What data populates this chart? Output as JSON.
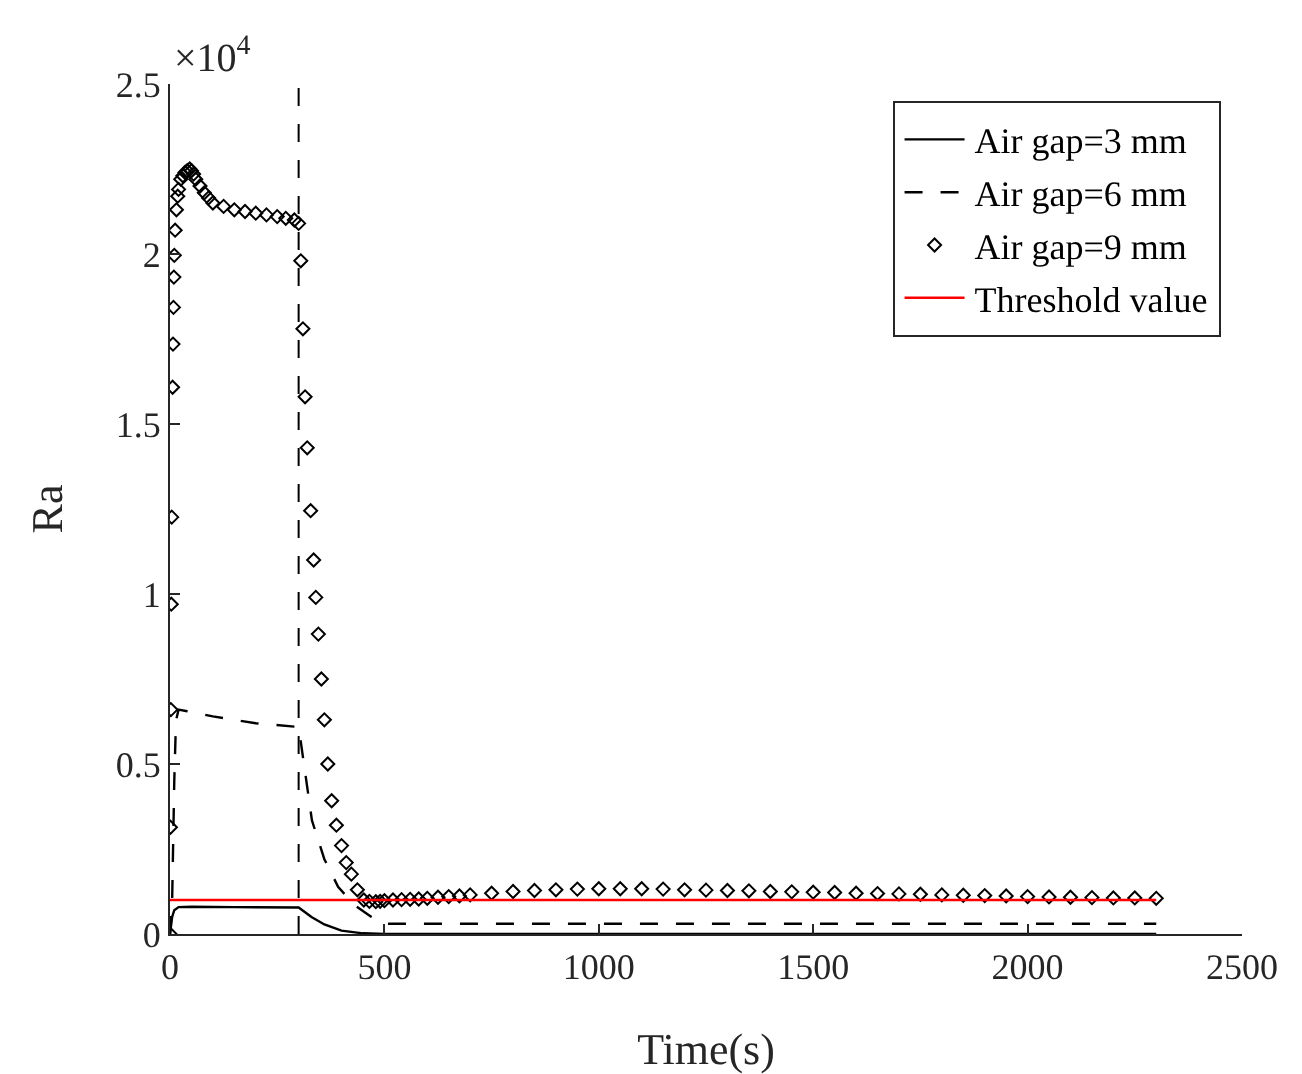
{
  "chart_data": {
    "type": "line",
    "xlabel": "Time(s)",
    "ylabel": "Ra",
    "annotations": [
      "×10$^{4}$"
    ],
    "xlim": [
      0,
      2500
    ],
    "xticks": [
      0,
      500,
      1000,
      1500,
      2000,
      2500
    ],
    "ylim": [
      0,
      2.5
    ],
    "yticks": [
      0,
      0.5,
      1,
      1.5,
      2,
      2.5
    ],
    "grid": false,
    "legend": "top right",
    "ref_lines": [
      {
        "axis": "x",
        "value": 300,
        "color": "#000000",
        "line_style": "dashed"
      }
    ],
    "series": [
      {
        "name": "Air gap=3 mm",
        "color": "#000000",
        "line_style": "solid",
        "marker": "none",
        "x": [
          0,
          5,
          10,
          20,
          50,
          150,
          300,
          330,
          360,
          400,
          450,
          500,
          1000,
          1500,
          2000,
          2300
        ],
        "values": [
          0,
          0.05,
          0.07,
          0.079,
          0.08,
          0.079,
          0.078,
          0.05,
          0.028,
          0.01,
          0.002,
          0,
          0,
          0,
          0,
          0
        ]
      },
      {
        "name": "Air gap=6 mm",
        "color": "#000000",
        "line_style": "dashed",
        "marker": "none",
        "x": [
          0,
          5,
          10,
          14,
          20,
          40,
          100,
          150,
          200,
          290,
          300,
          331,
          360,
          392,
          430,
          469,
          500,
          1000,
          1500,
          2000,
          2300
        ],
        "values": [
          0,
          0.098,
          0.45,
          0.628,
          0.66,
          0.655,
          0.64,
          0.63,
          0.62,
          0.61,
          0.61,
          0.334,
          0.22,
          0.139,
          0.085,
          0.051,
          0.03,
          0.03,
          0.03,
          0.03,
          0.03
        ]
      },
      {
        "name": "Air gap=9 mm",
        "type": "scatter",
        "color": "#000000",
        "marker": "diamond",
        "x": [
          0,
          1,
          2,
          3,
          4,
          6,
          7,
          8,
          9,
          10,
          12,
          15,
          18,
          20,
          25,
          30,
          35,
          40,
          46,
          50,
          55,
          60,
          70,
          80,
          90,
          100,
          125,
          150,
          175,
          200,
          225,
          250,
          270,
          290,
          300,
          305,
          310,
          315,
          320,
          328,
          335,
          340,
          346,
          353,
          360,
          368,
          377,
          388,
          400,
          411,
          423,
          437,
          452,
          465,
          480,
          490,
          500,
          520,
          540,
          560,
          580,
          600,
          625,
          650,
          675,
          700,
          750,
          800,
          850,
          900,
          950,
          1000,
          1050,
          1100,
          1150,
          1200,
          1250,
          1300,
          1350,
          1400,
          1450,
          1500,
          1550,
          1600,
          1650,
          1700,
          1750,
          1800,
          1850,
          1900,
          1950,
          2000,
          2050,
          2100,
          2150,
          2200,
          2250,
          2300
        ],
        "values": [
          0,
          0.314,
          0.66,
          0.97,
          1.226,
          1.608,
          1.735,
          1.843,
          1.932,
          1.996,
          2.07,
          2.13,
          2.17,
          2.19,
          2.22,
          2.23,
          2.24,
          2.245,
          2.25,
          2.245,
          2.235,
          2.22,
          2.2,
          2.18,
          2.165,
          2.15,
          2.14,
          2.13,
          2.125,
          2.12,
          2.115,
          2.11,
          2.105,
          2.1,
          2.09,
          1.98,
          1.78,
          1.58,
          1.43,
          1.245,
          1.1,
          0.99,
          0.882,
          0.75,
          0.63,
          0.5,
          0.392,
          0.32,
          0.26,
          0.21,
          0.176,
          0.13,
          0.1,
          0.096,
          0.095,
          0.096,
          0.098,
          0.1,
          0.101,
          0.102,
          0.103,
          0.105,
          0.108,
          0.11,
          0.112,
          0.115,
          0.12,
          0.125,
          0.128,
          0.13,
          0.132,
          0.133,
          0.133,
          0.133,
          0.132,
          0.13,
          0.129,
          0.128,
          0.127,
          0.125,
          0.124,
          0.123,
          0.122,
          0.12,
          0.119,
          0.118,
          0.117,
          0.115,
          0.114,
          0.113,
          0.112,
          0.11,
          0.109,
          0.108,
          0.107,
          0.106,
          0.106,
          0.105
        ]
      },
      {
        "name": "Threshold value",
        "color": "#ff0000",
        "line_style": "solid",
        "marker": "none",
        "x": [
          0,
          2300
        ],
        "values": [
          0.1,
          0.1
        ]
      }
    ]
  }
}
